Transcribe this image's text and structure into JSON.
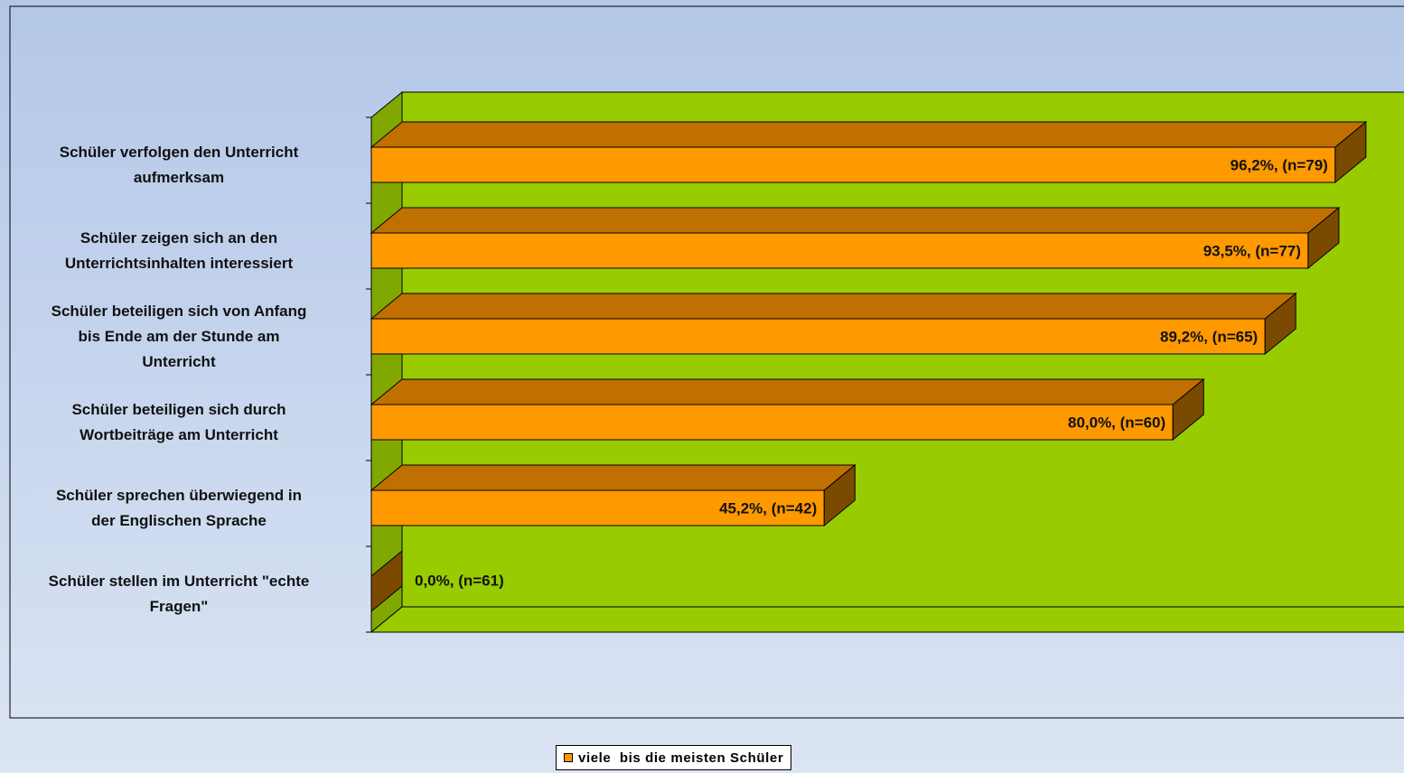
{
  "chart_data": {
    "type": "bar",
    "orientation": "horizontal",
    "style": "3d",
    "categories": [
      "Schüler verfolgen den Unterricht\naufmerksam",
      "Schüler zeigen sich an den\nUnterrichtsinhalten interessiert",
      "Schüler beteiligen sich von Anfang\nbis Ende am der Stunde am\nUnterricht",
      "Schüler beteiligen sich durch\nWortbeiträge am Unterricht",
      "Schüler sprechen überwiegend in\nder Englischen Sprache",
      "Schüler stellen im Unterricht \"echte\nFragen\""
    ],
    "series": [
      {
        "name": "viele  bis die meisten Schüler",
        "values": [
          96.2,
          93.5,
          89.2,
          80.0,
          45.2,
          0.0
        ],
        "data_labels": [
          "96,2%, (n=79)",
          "93,5%, (n=77)",
          "89,2%, (n=65)",
          "80,0%, (n=60)",
          "45,2%, (n=42)",
          "0,0%, (n=61)"
        ]
      }
    ],
    "xlim": [
      0,
      100
    ],
    "grid": false,
    "legend_position": "bottom",
    "colors": {
      "bar_front": "#ff9900",
      "bar_top": "#c07000",
      "bar_side": "#7a4a00",
      "plot_back": "#99cc00",
      "plot_side": "#80a800",
      "plot_floor": "#99cc00"
    }
  },
  "legend": {
    "label": "viele  bis die meisten Schüler",
    "swatch_color": "#ff9900"
  }
}
